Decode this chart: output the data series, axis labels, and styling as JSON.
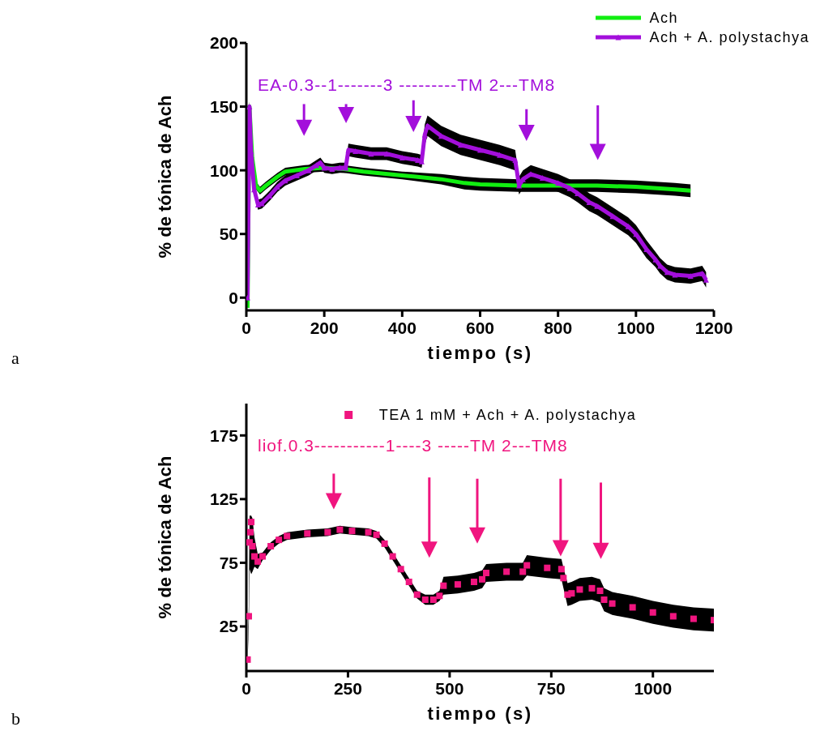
{
  "chart_data": [
    {
      "type": "line",
      "xlabel": "tiempo (s)",
      "ylabel": "% de tónica de Ach",
      "xlim": [
        0,
        1200
      ],
      "xticks": [
        0,
        200,
        400,
        600,
        800,
        1000,
        1200
      ],
      "ylim": [
        -10,
        200
      ],
      "yticks": [
        0,
        50,
        100,
        150,
        200
      ],
      "grid": false,
      "legend": "top right",
      "annotations": [
        "EA-0.3--1-------3 ---------TM 2---TM8",
        "a"
      ],
      "series": [
        {
          "name": "Ach",
          "color": "#11ee11",
          "marker": "none",
          "x": [
            3,
            8,
            15,
            25,
            35,
            50,
            80,
            100,
            150,
            200,
            250,
            300,
            400,
            500,
            560,
            600,
            700,
            800,
            900,
            1000,
            1100,
            1140
          ],
          "values": [
            -8,
            150,
            110,
            88,
            84,
            88,
            95,
            99,
            101,
            102,
            101,
            99,
            96,
            93,
            90,
            89,
            88,
            88,
            88,
            87,
            85,
            84
          ],
          "lower": [
            -10,
            146,
            106,
            85,
            81,
            85,
            92,
            96,
            98,
            99,
            98,
            96,
            93,
            89,
            85,
            84,
            83,
            83,
            83,
            82,
            80,
            79
          ],
          "upper": [
            -6,
            154,
            114,
            91,
            87,
            91,
            98,
            102,
            104,
            105,
            104,
            102,
            99,
            97,
            95,
            94,
            93,
            93,
            93,
            92,
            90,
            89
          ]
        },
        {
          "name": "Ach + A. polystachya",
          "color": "#a30fdb",
          "marker": "triangle",
          "x": [
            3,
            8,
            12,
            20,
            30,
            40,
            60,
            80,
            100,
            130,
            160,
            180,
            190,
            200,
            220,
            240,
            255,
            262,
            280,
            320,
            360,
            400,
            440,
            450,
            458,
            465,
            500,
            550,
            600,
            650,
            690,
            700,
            710,
            730,
            760,
            800,
            830,
            850,
            880,
            900,
            940,
            980,
            1000,
            1027,
            1050,
            1062,
            1080,
            1100,
            1140,
            1170,
            1180
          ],
          "values": [
            0,
            150,
            115,
            85,
            73,
            74,
            80,
            87,
            92,
            96,
            100,
            104,
            106,
            102,
            101,
            102,
            102,
            116,
            115,
            113,
            113,
            110,
            108,
            107,
            128,
            135,
            127,
            120,
            116,
            112,
            108,
            88,
            93,
            97,
            94,
            90,
            86,
            82,
            75,
            72,
            64,
            56,
            50,
            38,
            30,
            25,
            20,
            18,
            17,
            19,
            14
          ],
          "lower": [
            -4,
            146,
            111,
            81,
            69,
            70,
            76,
            83,
            88,
            92,
            96,
            100,
            102,
            98,
            97,
            98,
            98,
            111,
            110,
            108,
            108,
            105,
            103,
            102,
            120,
            127,
            119,
            112,
            108,
            104,
            100,
            81,
            86,
            90,
            87,
            83,
            79,
            75,
            68,
            65,
            57,
            49,
            43,
            31,
            24,
            19,
            14,
            12,
            11,
            13,
            8
          ],
          "upper": [
            4,
            154,
            119,
            89,
            77,
            78,
            84,
            91,
            96,
            100,
            104,
            108,
            110,
            106,
            105,
            106,
            106,
            121,
            120,
            118,
            118,
            115,
            113,
            112,
            136,
            143,
            135,
            128,
            124,
            120,
            116,
            95,
            100,
            104,
            101,
            97,
            93,
            89,
            82,
            79,
            71,
            63,
            57,
            45,
            36,
            31,
            26,
            24,
            23,
            25,
            20
          ]
        }
      ]
    },
    {
      "type": "scatter",
      "xlabel": "tiempo (s)",
      "ylabel": "% de tónica de Ach",
      "xlim": [
        0,
        1150
      ],
      "xticks": [
        0,
        250,
        500,
        750,
        1000
      ],
      "ylim": [
        -10,
        200
      ],
      "yticks": [
        25,
        75,
        125,
        175
      ],
      "grid": false,
      "legend": "top",
      "marker": "square",
      "annotations": [
        "liof.0.3-----------1----3 -----TM 2---TM8",
        "b"
      ],
      "series": [
        {
          "name": "TEA 1 mM + Ach + A. polystachya",
          "color": "#f0157f",
          "x": [
            3,
            6,
            8,
            10,
            12,
            15,
            20,
            28,
            40,
            60,
            80,
            100,
            150,
            200,
            230,
            260,
            300,
            320,
            340,
            360,
            380,
            400,
            420,
            440,
            460,
            475,
            485,
            520,
            560,
            580,
            590,
            640,
            680,
            690,
            740,
            775,
            780,
            790,
            800,
            820,
            850,
            870,
            880,
            900,
            950,
            1000,
            1050,
            1100,
            1150
          ],
          "values": [
            -1,
            33,
            91,
            99,
            107,
            88,
            80,
            76,
            80,
            88,
            93,
            96,
            98,
            99,
            101,
            100,
            99,
            97,
            90,
            80,
            70,
            60,
            50,
            46,
            46,
            49,
            57,
            58,
            60,
            62,
            67,
            68,
            68,
            73,
            71,
            70,
            63,
            50,
            51,
            54,
            55,
            53,
            46,
            43,
            40,
            36,
            33,
            31,
            30
          ],
          "lower": [
            -3,
            25,
            70,
            68,
            66,
            68,
            72,
            70,
            77,
            85,
            90,
            93,
            95,
            96,
            98,
            97,
            96,
            94,
            87,
            77,
            67,
            57,
            47,
            42,
            42,
            45,
            50,
            51,
            53,
            55,
            60,
            61,
            61,
            65,
            63,
            62,
            55,
            41,
            42,
            45,
            46,
            44,
            37,
            34,
            31,
            27,
            24,
            22,
            21
          ],
          "upper": [
            1,
            41,
            112,
            112,
            112,
            110,
            95,
            82,
            83,
            91,
            96,
            99,
            101,
            102,
            104,
            103,
            102,
            100,
            93,
            83,
            73,
            63,
            53,
            50,
            50,
            53,
            64,
            65,
            67,
            69,
            74,
            75,
            75,
            81,
            79,
            78,
            71,
            59,
            60,
            63,
            64,
            62,
            55,
            52,
            49,
            45,
            42,
            40,
            39
          ]
        }
      ]
    }
  ]
}
